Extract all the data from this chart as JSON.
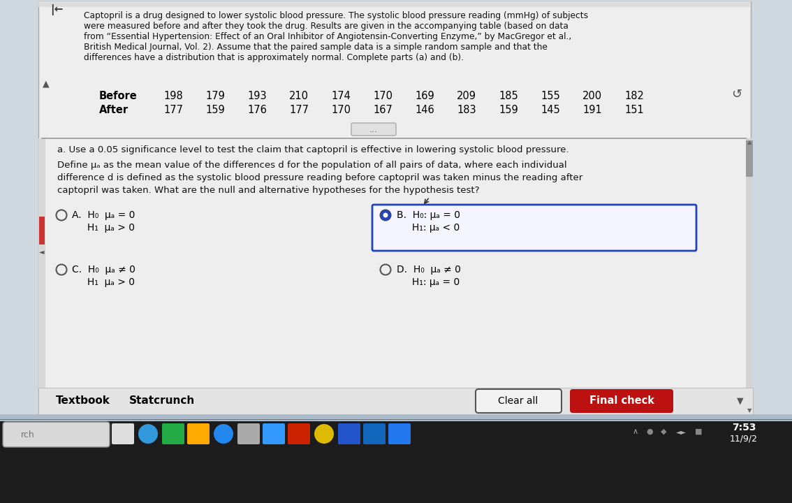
{
  "bg_outer": "#b8c8d8",
  "bg_content": "#e8eaec",
  "bg_white": "#f0f0f0",
  "title_lines": [
    "Captopril is a drug designed to lower systolic blood pressure. The systolic blood pressure reading (mmHg) of subjects",
    "were measured before and after they took the drug. Results are given in the accompanying table (based on data",
    "from “Essential Hypertension: Effect of an Oral Inhibitor of Angiotensin-Converting Enzyme,” by MacGregor et al.,",
    "British Medical Journal, Vol. 2). Assume that the paired sample data is a simple random sample and that the",
    "differences have a distribution that is approximately normal. Complete parts (a) and (b)."
  ],
  "before_label": "Before",
  "after_label": "After",
  "before_values": [
    198,
    179,
    193,
    210,
    174,
    170,
    169,
    209,
    185,
    155,
    200,
    182
  ],
  "after_values": [
    177,
    159,
    176,
    177,
    170,
    167,
    146,
    183,
    159,
    145,
    191,
    151
  ],
  "part_a_text": "a. Use a 0.05 significance level to test the claim that captopril is effective in lowering systolic blood pressure.",
  "define_line1": "Define μₐ as the mean value of the differences d for the population of all pairs of data, where each individual",
  "define_line2": "difference d is defined as the systolic blood pressure reading before captopril was taken minus the reading after",
  "define_line3": "captopril was taken. What are the null and alternative hypotheses for the hypothesis test?",
  "optA_1": "A.  H₀  μₐ = 0",
  "optA_2": "     H₁  μₐ > 0",
  "optB_1": "B.  H₀: μₐ = 0",
  "optB_2": "     H₁: μₐ < 0",
  "optC_1": "C.  H₀  μₐ ≠ 0",
  "optC_2": "     H₁  μₐ > 0",
  "optD_1": "D.  H₀  μₐ ≠ 0",
  "optD_2": "     H₁: μₐ = 0",
  "textbook_label": "Textbook",
  "statcrunch_label": "Statcrunch",
  "clear_all_label": "Clear all",
  "final_check_label": "Final check",
  "time_text": "7:53",
  "date_text": "11/9/2",
  "taskbar_color": "#1c1c1c",
  "scroll_bar_color": "#cc3333",
  "icon_colors": [
    "#cccccc",
    "#3388cc",
    "#22aa33",
    "#ffaa00",
    "#3399ee",
    "#888888",
    "#3399ff",
    "#cc2200",
    "#ddaa00",
    "#2244cc",
    "#1155bb",
    "#2266dd"
  ]
}
